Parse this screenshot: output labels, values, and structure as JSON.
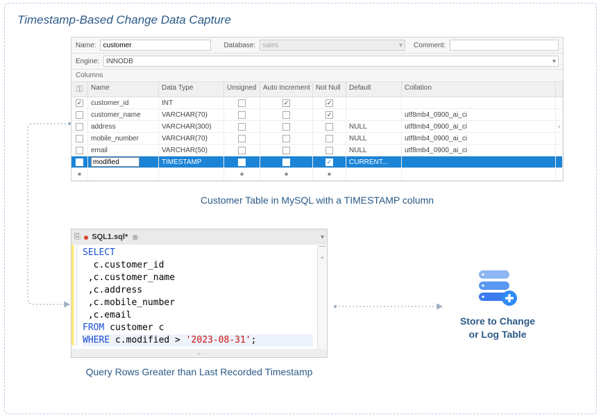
{
  "title": "Timestamp-Based Change Data Capture",
  "mysql": {
    "form": {
      "name_label": "Name:",
      "name_value": "customer",
      "database_label": "Database:",
      "database_value": "sales",
      "comment_label": "Comment:",
      "comment_value": "",
      "engine_label": "Engine:",
      "engine_value": "INNODB"
    },
    "columns_label": "Columns",
    "headers": {
      "key": "⚿",
      "name": "Name",
      "data_type": "Data Type",
      "unsigned": "Unsigned",
      "auto_inc": "Auto Increment",
      "not_null": "Not Null",
      "default": "Default",
      "collation": "Collation"
    },
    "rows": [
      {
        "pk": true,
        "name": "customer_id",
        "type": "INT",
        "unsigned": false,
        "auto_inc": true,
        "not_null": true,
        "default": "",
        "collation": ""
      },
      {
        "pk": false,
        "name": "customer_name",
        "type": "VARCHAR(70)",
        "unsigned": false,
        "auto_inc": false,
        "not_null": true,
        "default": "",
        "collation": "utf8mb4_0900_ai_ci"
      },
      {
        "pk": false,
        "name": "address",
        "type": "VARCHAR(300)",
        "unsigned": false,
        "auto_inc": false,
        "not_null": false,
        "default": "NULL",
        "collation": "utf8mb4_0900_ai_ci"
      },
      {
        "pk": false,
        "name": "mobile_number",
        "type": "VARCHAR(70)",
        "unsigned": false,
        "auto_inc": false,
        "not_null": false,
        "default": "NULL",
        "collation": "utf8mb4_0900_ai_ci"
      },
      {
        "pk": false,
        "name": "email",
        "type": "VARCHAR(50)",
        "unsigned": false,
        "auto_inc": false,
        "not_null": false,
        "default": "NULL",
        "collation": "utf8mb4_0900_ai_ci"
      },
      {
        "pk": false,
        "name": "modified",
        "type": "TIMESTAMP",
        "unsigned": false,
        "auto_inc": false,
        "not_null": true,
        "default": "CURRENT...",
        "collation": "",
        "editing": true,
        "selected": true
      }
    ]
  },
  "caption1": "Customer Table in MySQL with a TIMESTAMP column",
  "sql": {
    "tab_name": "SQL1.sql*",
    "lines": [
      {
        "tokens": [
          {
            "t": "SELECT",
            "c": "kw"
          }
        ]
      },
      {
        "tokens": [
          {
            "t": "  c.customer_id",
            "c": ""
          }
        ]
      },
      {
        "tokens": [
          {
            "t": " ,c.customer_name",
            "c": ""
          }
        ]
      },
      {
        "tokens": [
          {
            "t": " ,c.address",
            "c": ""
          }
        ]
      },
      {
        "tokens": [
          {
            "t": " ,c.mobile_number",
            "c": ""
          }
        ]
      },
      {
        "tokens": [
          {
            "t": " ,c.email",
            "c": ""
          }
        ]
      },
      {
        "tokens": [
          {
            "t": "FROM",
            "c": "kw"
          },
          {
            "t": " customer c",
            "c": ""
          }
        ]
      },
      {
        "hl": true,
        "tokens": [
          {
            "t": "WHERE",
            "c": "kw"
          },
          {
            "t": " c.modified > ",
            "c": ""
          },
          {
            "t": "'2023-08-31'",
            "c": "str"
          },
          {
            "t": ";",
            "c": ""
          }
        ]
      }
    ]
  },
  "caption2": "Query Rows Greater than Last Recorded Timestamp",
  "db": {
    "label_l1": "Store to Change",
    "label_l2": "or Log Table",
    "colors": {
      "light": "#8db6f2",
      "main": "#3a7bf0",
      "plus": "#2e8af5"
    }
  },
  "colors": {
    "frame_border": "#b8c9e8",
    "title": "#2b5a87",
    "highlight_row": "#1b84d6",
    "connector": "#9fb0c4"
  }
}
